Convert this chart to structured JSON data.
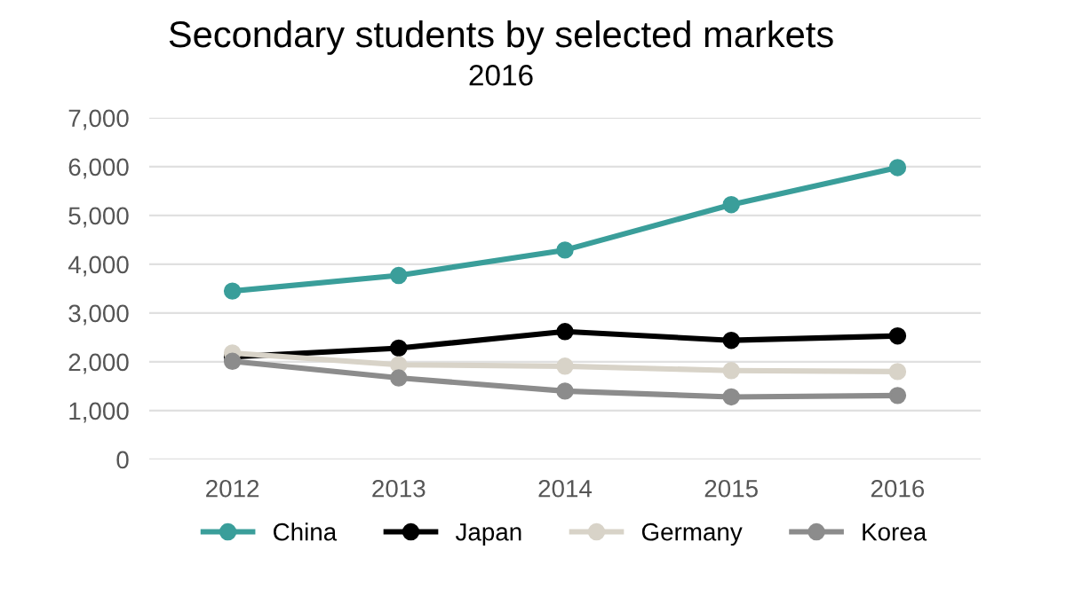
{
  "chart_data": {
    "type": "line",
    "title": "Secondary students by selected markets",
    "subtitle": "2016",
    "categories": [
      "2012",
      "2013",
      "2014",
      "2015",
      "2016"
    ],
    "series": [
      {
        "name": "China",
        "color": "#3a9e9a",
        "values": [
          3450,
          3770,
          4290,
          5220,
          5980
        ]
      },
      {
        "name": "Japan",
        "color": "#000000",
        "values": [
          2100,
          2280,
          2620,
          2440,
          2530
        ]
      },
      {
        "name": "Germany",
        "color": "#d8d3c8",
        "values": [
          2180,
          1940,
          1910,
          1820,
          1800
        ]
      },
      {
        "name": "Korea",
        "color": "#8c8c8c",
        "values": [
          2010,
          1670,
          1400,
          1280,
          1310
        ]
      }
    ],
    "ylim": [
      0,
      7000
    ],
    "yticks": [
      {
        "value": 0,
        "label": "0"
      },
      {
        "value": 1000,
        "label": "1,000"
      },
      {
        "value": 2000,
        "label": "2,000"
      },
      {
        "value": 3000,
        "label": "3,000"
      },
      {
        "value": 4000,
        "label": "4,000"
      },
      {
        "value": 5000,
        "label": "5,000"
      },
      {
        "value": 6000,
        "label": "6,000"
      },
      {
        "value": 7000,
        "label": "7,000"
      }
    ],
    "grid": "y",
    "legend": "bottom",
    "marker": "circle",
    "line_style": "solid"
  }
}
